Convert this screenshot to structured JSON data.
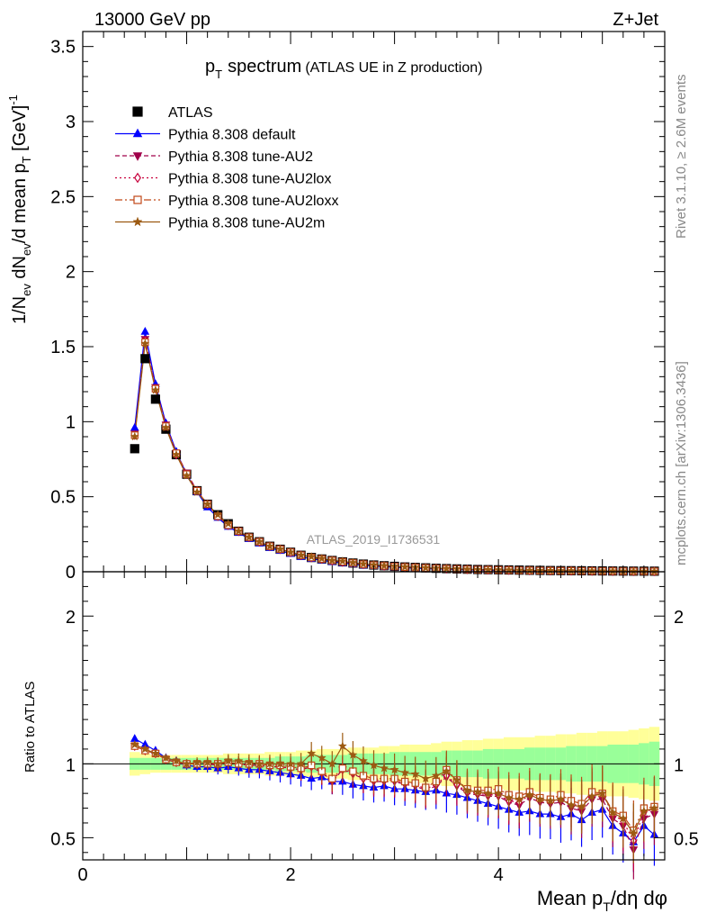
{
  "header": {
    "beam": "13000 GeV pp",
    "process": "Z+Jet"
  },
  "side_labels": {
    "rivet": "Rivet 3.1.10, ≥ 2.6M events",
    "mcplots": "mcplots.cern.ch [arXiv:1306.3436]"
  },
  "watermark": "ATLAS_2019_I1736531",
  "chart_data": [
    {
      "type": "scatter",
      "panel": "main",
      "title": "spectrum (ATLAS UE in Z production)",
      "title_prefix": "p",
      "title_prefix_sub": "T",
      "ylabel": "1/N_ev dN_ev/d mean p_T [GeV]^-1",
      "xlim": [
        0,
        5.6
      ],
      "ylim": [
        0,
        3.6
      ],
      "yticks": [
        0,
        0.5,
        1,
        1.5,
        2,
        2.5,
        3,
        3.5
      ],
      "ytick_labels": [
        "0",
        "0.5",
        "1",
        "1.5",
        "2",
        "2.5",
        "3",
        "3.5"
      ],
      "legend_placement": "top-left",
      "x": [
        0.5,
        0.6,
        0.7,
        0.8,
        0.9,
        1.0,
        1.1,
        1.2,
        1.3,
        1.4,
        1.5,
        1.6,
        1.7,
        1.8,
        1.9,
        2.0,
        2.1,
        2.2,
        2.3,
        2.4,
        2.5,
        2.6,
        2.7,
        2.8,
        2.9,
        3.0,
        3.1,
        3.2,
        3.3,
        3.4,
        3.5,
        3.6,
        3.7,
        3.8,
        3.9,
        4.0,
        4.1,
        4.2,
        4.3,
        4.4,
        4.5,
        4.6,
        4.7,
        4.8,
        4.9,
        5.0,
        5.1,
        5.2,
        5.3,
        5.4,
        5.5
      ],
      "series": [
        {
          "name": "ATLAS",
          "color": "#000000",
          "marker": "square-filled",
          "values": [
            0.82,
            1.42,
            1.15,
            0.95,
            0.78,
            0.65,
            0.54,
            0.45,
            0.38,
            0.32,
            0.27,
            0.23,
            0.2,
            0.17,
            0.15,
            0.13,
            0.11,
            0.095,
            0.085,
            0.075,
            0.066,
            0.058,
            0.051,
            0.045,
            0.04,
            0.036,
            0.032,
            0.029,
            0.026,
            0.023,
            0.021,
            0.019,
            0.017,
            0.015,
            0.014,
            0.013,
            0.012,
            0.011,
            0.01,
            0.009,
            0.008,
            0.0075,
            0.007,
            0.0065,
            0.006,
            0.0055,
            0.005,
            0.0045,
            0.0042,
            0.004,
            0.0038
          ]
        },
        {
          "name": "Pythia 8.308 default",
          "color": "#0000ff",
          "marker": "triangle-up-filled",
          "dash": "solid",
          "values": [
            0.96,
            1.6,
            1.25,
            0.99,
            0.8,
            0.65,
            0.53,
            0.43,
            0.36,
            0.3,
            0.26,
            0.22,
            0.19,
            0.16,
            0.14,
            0.12,
            0.1,
            0.086,
            0.077,
            0.066,
            0.058,
            0.05,
            0.043,
            0.038,
            0.034,
            0.03,
            0.027,
            0.024,
            0.021,
            0.019,
            0.017,
            0.015,
            0.013,
            0.011,
            0.01,
            0.009,
            0.008,
            0.007,
            0.0065,
            0.006,
            0.0055,
            0.0048,
            0.0045,
            0.004,
            0.0036,
            0.0034,
            0.003,
            0.0025,
            0.0022,
            0.002,
            0.002
          ]
        },
        {
          "name": "Pythia 8.308 tune-AU2",
          "color": "#a0004a",
          "marker": "triangle-down-filled",
          "dash": "5,3",
          "values": [
            0.92,
            1.55,
            1.23,
            0.98,
            0.79,
            0.66,
            0.54,
            0.45,
            0.37,
            0.31,
            0.27,
            0.23,
            0.2,
            0.17,
            0.15,
            0.13,
            0.11,
            0.095,
            0.085,
            0.074,
            0.065,
            0.057,
            0.05,
            0.044,
            0.039,
            0.035,
            0.031,
            0.028,
            0.025,
            0.022,
            0.02,
            0.018,
            0.016,
            0.014,
            0.013,
            0.012,
            0.011,
            0.0095,
            0.0085,
            0.0075,
            0.0068,
            0.0063,
            0.0058,
            0.0053,
            0.0048,
            0.0044,
            0.004,
            0.0034,
            0.003,
            0.0028,
            0.0026
          ]
        },
        {
          "name": "Pythia 8.308 tune-AU2lox",
          "color": "#c8003c",
          "marker": "diamond-open",
          "dash": "2,3",
          "values": [
            0.91,
            1.54,
            1.22,
            0.97,
            0.78,
            0.65,
            0.54,
            0.45,
            0.37,
            0.31,
            0.27,
            0.23,
            0.2,
            0.17,
            0.15,
            0.13,
            0.11,
            0.095,
            0.085,
            0.074,
            0.065,
            0.057,
            0.05,
            0.044,
            0.039,
            0.035,
            0.031,
            0.028,
            0.025,
            0.022,
            0.02,
            0.018,
            0.016,
            0.014,
            0.013,
            0.012,
            0.011,
            0.0095,
            0.0085,
            0.0075,
            0.0068,
            0.0063,
            0.0058,
            0.0053,
            0.0048,
            0.0044,
            0.004,
            0.0034,
            0.003,
            0.0028,
            0.0026
          ]
        },
        {
          "name": "Pythia 8.308 tune-AU2loxx",
          "color": "#c04818",
          "marker": "square-open",
          "dash": "8,3,2,3",
          "values": [
            0.91,
            1.53,
            1.22,
            0.97,
            0.79,
            0.65,
            0.54,
            0.45,
            0.37,
            0.31,
            0.27,
            0.23,
            0.2,
            0.17,
            0.15,
            0.13,
            0.11,
            0.095,
            0.085,
            0.075,
            0.066,
            0.058,
            0.05,
            0.044,
            0.039,
            0.035,
            0.031,
            0.028,
            0.025,
            0.022,
            0.02,
            0.018,
            0.016,
            0.014,
            0.013,
            0.012,
            0.011,
            0.0095,
            0.0085,
            0.0075,
            0.0068,
            0.0063,
            0.0058,
            0.0053,
            0.0048,
            0.0044,
            0.004,
            0.0034,
            0.003,
            0.0028,
            0.0026
          ]
        },
        {
          "name": "Pythia 8.308 tune-AU2m",
          "color": "#9c5a12",
          "marker": "star-filled",
          "dash": "solid",
          "values": [
            0.9,
            1.52,
            1.21,
            0.96,
            0.78,
            0.64,
            0.53,
            0.45,
            0.38,
            0.32,
            0.27,
            0.23,
            0.2,
            0.17,
            0.15,
            0.13,
            0.11,
            0.1,
            0.088,
            0.075,
            0.07,
            0.06,
            0.052,
            0.045,
            0.04,
            0.036,
            0.032,
            0.029,
            0.026,
            0.023,
            0.021,
            0.019,
            0.016,
            0.014,
            0.013,
            0.012,
            0.011,
            0.0095,
            0.0085,
            0.0075,
            0.0068,
            0.0063,
            0.0058,
            0.0053,
            0.0048,
            0.0044,
            0.004,
            0.0034,
            0.003,
            0.0028,
            0.0026
          ]
        }
      ]
    },
    {
      "type": "scatter",
      "panel": "ratio",
      "xlabel": "Mean p_T/dη dφ",
      "ylabel": "Ratio to ATLAS",
      "xlim": [
        0,
        5.6
      ],
      "ylim": [
        0.35,
        2.3
      ],
      "xticks": [
        0,
        2,
        4
      ],
      "xtick_labels": [
        "0",
        "2",
        "4"
      ],
      "yticks": [
        0.5,
        1,
        2
      ],
      "ytick_labels": [
        "0.5",
        "1",
        "2"
      ],
      "reference_line": 1,
      "bands": {
        "inner_color": "#99ff99",
        "outer_color": "#ffff99",
        "inner_halfwidth": [
          0.04,
          0.04,
          0.04,
          0.04,
          0.04,
          0.04,
          0.04,
          0.04,
          0.04,
          0.04,
          0.04,
          0.04,
          0.04,
          0.04,
          0.05,
          0.05,
          0.05,
          0.06,
          0.06,
          0.06,
          0.06,
          0.07,
          0.07,
          0.07,
          0.07,
          0.08,
          0.08,
          0.08,
          0.08,
          0.08,
          0.09,
          0.09,
          0.09,
          0.09,
          0.1,
          0.1,
          0.1,
          0.1,
          0.11,
          0.11,
          0.11,
          0.11,
          0.12,
          0.12,
          0.12,
          0.12,
          0.13,
          0.13,
          0.13,
          0.14,
          0.15
        ],
        "outer_halfwidth": [
          0.08,
          0.07,
          0.06,
          0.06,
          0.06,
          0.06,
          0.06,
          0.06,
          0.06,
          0.07,
          0.07,
          0.07,
          0.07,
          0.08,
          0.08,
          0.08,
          0.09,
          0.09,
          0.1,
          0.1,
          0.1,
          0.11,
          0.11,
          0.11,
          0.12,
          0.12,
          0.13,
          0.13,
          0.13,
          0.14,
          0.15,
          0.15,
          0.16,
          0.16,
          0.17,
          0.17,
          0.18,
          0.18,
          0.18,
          0.19,
          0.19,
          0.2,
          0.2,
          0.21,
          0.21,
          0.22,
          0.22,
          0.22,
          0.23,
          0.24,
          0.25
        ]
      },
      "series": [
        {
          "name": "Pythia 8.308 default",
          "color": "#0000ff",
          "values": [
            1.17,
            1.13,
            1.09,
            1.04,
            1.02,
            0.99,
            0.98,
            0.98,
            0.97,
            0.98,
            0.97,
            0.96,
            0.96,
            0.95,
            0.94,
            0.93,
            0.92,
            0.9,
            0.91,
            0.88,
            0.88,
            0.86,
            0.85,
            0.84,
            0.85,
            0.83,
            0.83,
            0.82,
            0.81,
            0.82,
            0.8,
            0.79,
            0.77,
            0.75,
            0.73,
            0.71,
            0.69,
            0.67,
            0.68,
            0.66,
            0.66,
            0.64,
            0.66,
            0.62,
            0.67,
            0.69,
            0.58,
            0.53,
            0.47,
            0.58,
            0.52
          ]
        },
        {
          "name": "Pythia 8.308 tune-AU2",
          "color": "#a0004a",
          "values": [
            1.12,
            1.09,
            1.07,
            1.03,
            1.01,
            1.0,
            1.0,
            1.0,
            0.99,
            1.01,
            1.0,
            0.99,
            0.99,
            0.98,
            0.98,
            0.97,
            0.96,
            0.98,
            0.94,
            0.88,
            0.96,
            0.93,
            0.9,
            0.88,
            0.88,
            0.88,
            0.86,
            0.85,
            0.82,
            0.85,
            0.91,
            0.85,
            0.8,
            0.79,
            0.78,
            0.78,
            0.74,
            0.72,
            0.77,
            0.74,
            0.73,
            0.74,
            0.7,
            0.68,
            0.76,
            0.76,
            0.63,
            0.58,
            0.42,
            0.63,
            0.66
          ]
        },
        {
          "name": "Pythia 8.308 tune-AU2lox",
          "color": "#c8003c",
          "values": [
            1.12,
            1.09,
            1.07,
            1.03,
            1.01,
            1.0,
            1.0,
            1.0,
            1.0,
            1.01,
            1.0,
            0.99,
            0.99,
            0.98,
            0.98,
            0.97,
            0.96,
            0.98,
            0.94,
            0.89,
            0.96,
            0.94,
            0.9,
            0.89,
            0.89,
            0.89,
            0.87,
            0.86,
            0.83,
            0.86,
            0.92,
            0.86,
            0.81,
            0.8,
            0.79,
            0.79,
            0.75,
            0.74,
            0.79,
            0.76,
            0.75,
            0.76,
            0.73,
            0.71,
            0.79,
            0.8,
            0.66,
            0.61,
            0.48,
            0.67,
            0.7
          ]
        },
        {
          "name": "Pythia 8.308 tune-AU2loxx",
          "color": "#c04818",
          "values": [
            1.12,
            1.09,
            1.07,
            1.03,
            1.01,
            1.0,
            1.0,
            1.0,
            1.0,
            1.01,
            1.0,
            1.0,
            1.0,
            0.99,
            0.99,
            0.98,
            0.97,
            0.99,
            0.95,
            0.9,
            0.97,
            0.95,
            0.92,
            0.9,
            0.9,
            0.9,
            0.88,
            0.87,
            0.84,
            0.88,
            0.96,
            0.89,
            0.83,
            0.82,
            0.82,
            0.83,
            0.79,
            0.78,
            0.81,
            0.77,
            0.76,
            0.79,
            0.75,
            0.73,
            0.81,
            0.8,
            0.68,
            0.65,
            0.55,
            0.7,
            0.71
          ]
        },
        {
          "name": "Pythia 8.308 tune-AU2m",
          "color": "#9c5a12",
          "values": [
            1.13,
            1.1,
            1.07,
            1.04,
            1.02,
            1.0,
            1.01,
            1.01,
            1.0,
            1.02,
            1.02,
            1.01,
            1.0,
            1.0,
            1.0,
            1.0,
            1.0,
            1.07,
            1.04,
            1.0,
            1.12,
            1.06,
            1.02,
            0.99,
            0.97,
            0.96,
            0.94,
            0.93,
            0.9,
            0.92,
            0.95,
            0.89,
            0.82,
            0.81,
            0.8,
            0.8,
            0.77,
            0.76,
            0.79,
            0.76,
            0.75,
            0.76,
            0.72,
            0.71,
            0.78,
            0.8,
            0.67,
            0.63,
            0.53,
            0.68,
            0.7
          ]
        }
      ]
    }
  ]
}
